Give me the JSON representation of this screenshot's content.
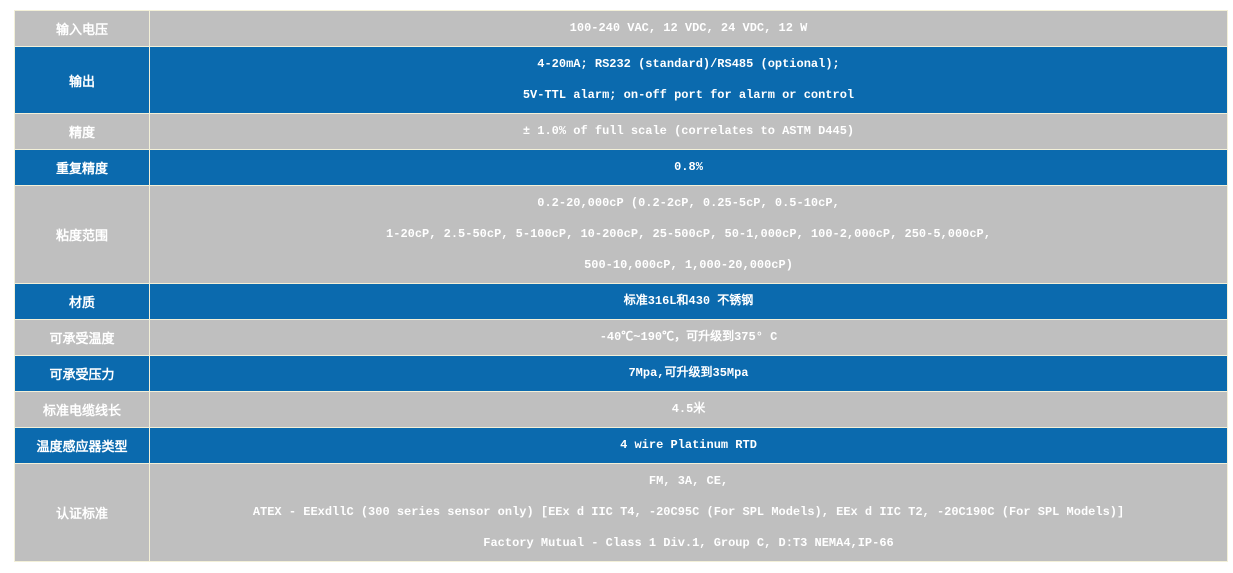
{
  "table": {
    "rows": [
      {
        "label": "输入电压",
        "value": [
          "100-240 VAC, 12 VDC, 24 VDC, 12 W"
        ]
      },
      {
        "label": "输出",
        "value": [
          "4-20mA; RS232 (standard)/RS485 (optional);",
          "5V-TTL alarm; on-off port for alarm or control"
        ]
      },
      {
        "label": "精度",
        "value": [
          "± 1.0% of full scale (correlates to ASTM D445)"
        ]
      },
      {
        "label": "重复精度",
        "value": [
          "0.8%"
        ]
      },
      {
        "label": "粘度范围",
        "value": [
          "0.2-20,000cP (0.2-2cP, 0.25-5cP, 0.5-10cP,",
          "1-20cP, 2.5-50cP, 5-100cP, 10-200cP, 25-500cP, 50-1,000cP, 100-2,000cP, 250-5,000cP,",
          "500-10,000cP, 1,000-20,000cP)"
        ]
      },
      {
        "label": "材质",
        "value": [
          "标准316L和430 不锈钢"
        ]
      },
      {
        "label": "可承受温度",
        "value": [
          "-40℃~190℃，可升级到375° C"
        ]
      },
      {
        "label": "可承受压力",
        "value": [
          "7Mpa,可升级到35Mpa"
        ]
      },
      {
        "label": "标准电缆线长",
        "value": [
          "4.5米"
        ]
      },
      {
        "label": "温度感应器类型",
        "value": [
          "4 wire Platinum RTD"
        ]
      },
      {
        "label": "认证标准",
        "value": [
          "FM, 3A, CE,",
          "ATEX - EExdllC (300 series sensor only) [EEx d IIC T4, -20C95C (For SPL Models), EEx d IIC T2, -20C190C (For SPL Models)]",
          "Factory Mutual - Class 1 Div.1, Group C, D:T3 NEMA4,IP-66"
        ]
      }
    ]
  }
}
